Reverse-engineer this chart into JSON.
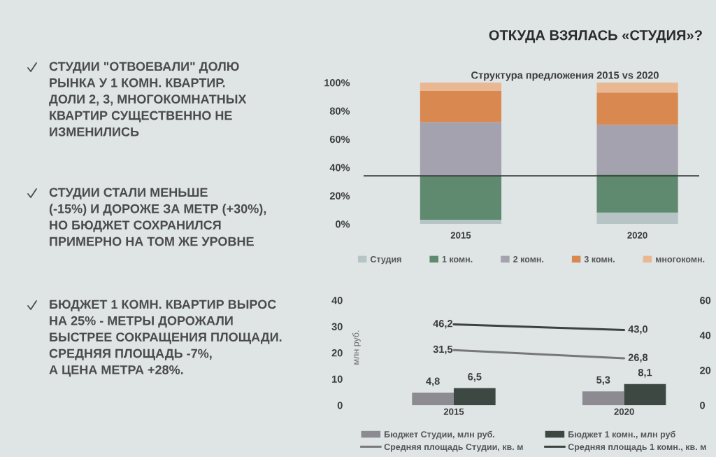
{
  "chart_data": [
    {
      "type": "other",
      "title": "ОТКУДА ВЗЯЛАСЬ «СТУДИЯ»?",
      "annotations": [
        "СТУДИИ \"ОТВОЕВАЛИ\" ДОЛЮ\nРЫНКА У 1 КОМН. КВАРТИР.\nДОЛИ 2, 3, МНОГОКОМНАТНЫХ\nКВАРТИР СУЩЕСТВЕННО НЕ\nИЗМЕНИЛИСЬ",
        "СТУДИИ СТАЛИ МЕНЬШЕ\n(-15%) И ДОРОЖЕ ЗА МЕТР (+30%),\nНО БЮДЖЕТ СОХРАНИЛСЯ\nПРИМЕРНО НА ТОМ ЖЕ УРОВНЕ",
        "БЮДЖЕТ 1 КОМН. КВАРТИР ВЫРОС\nНА 25% - МЕТРЫ ДОРОЖАЛИ\nБЫСТРЕЕ СОКРАЩЕНИЯ ПЛОЩАДИ.\nСРЕДНЯЯ ПЛОЩАДЬ -7%,\nА ЦЕНА МЕТРА +28%."
      ]
    },
    {
      "type": "bar",
      "title": "Структура предложения 2015 vs 2020",
      "categories": [
        "2015",
        "2020"
      ],
      "stacked": true,
      "series": [
        {
          "name": "Студия",
          "color": "#b7c4c6",
          "values": [
            3,
            8
          ]
        },
        {
          "name": "1 комн.",
          "color": "#5f8a70",
          "values": [
            31,
            27
          ]
        },
        {
          "name": "2 комн.",
          "color": "#a3a2ae",
          "values": [
            38,
            35
          ]
        },
        {
          "name": "3 комн.",
          "color": "#d98850",
          "values": [
            22,
            23
          ]
        },
        {
          "name": "многокомн.",
          "color": "#e9b892",
          "values": [
            6,
            7
          ]
        }
      ],
      "ylim": [
        0,
        100
      ],
      "yticks": [
        {
          "value": 0,
          "label": "0%"
        },
        {
          "value": 20,
          "label": "20%"
        },
        {
          "value": 40,
          "label": "40%"
        },
        {
          "value": 60,
          "label": "60%"
        },
        {
          "value": 80,
          "label": "80%"
        },
        {
          "value": 100,
          "label": "100%"
        }
      ],
      "ref_lines": [
        {
          "axis": "y",
          "value": 34,
          "color": "#3b3f3f"
        }
      ],
      "legend": "bottom"
    },
    {
      "type": "bar",
      "categories": [
        "2015",
        "2020"
      ],
      "ylabel": "млн руб.",
      "series": [
        {
          "name": "Бюджет Студии, млн руб.",
          "color": "#8c8b92",
          "values": [
            4.8,
            5.3
          ],
          "value_labels": [
            "4,8",
            "5,3"
          ]
        },
        {
          "name": "Средняя площадь Студии, кв. м",
          "type": "line",
          "axis": "y2",
          "color": "#77787c",
          "values": [
            31.5,
            26.8
          ],
          "value_labels": [
            "31,5",
            "26,8"
          ]
        },
        {
          "name": "Бюджет 1 комн., млн руб",
          "color": "#3e4843",
          "values": [
            6.5,
            8.1
          ],
          "value_labels": [
            "6,5",
            "8,1"
          ]
        },
        {
          "name": "Средняя площадь 1 комн., кв. м",
          "type": "line",
          "axis": "y2",
          "color": "#3d4140",
          "values": [
            46.2,
            43.0
          ],
          "value_labels": [
            "46,2",
            "43,0"
          ]
        }
      ],
      "ylim": [
        0,
        40
      ],
      "yticks": [
        0,
        10,
        20,
        30,
        40
      ],
      "y2lim": [
        0,
        60
      ],
      "y2ticks": [
        0,
        20,
        40,
        60
      ],
      "legend": "bottom"
    }
  ]
}
